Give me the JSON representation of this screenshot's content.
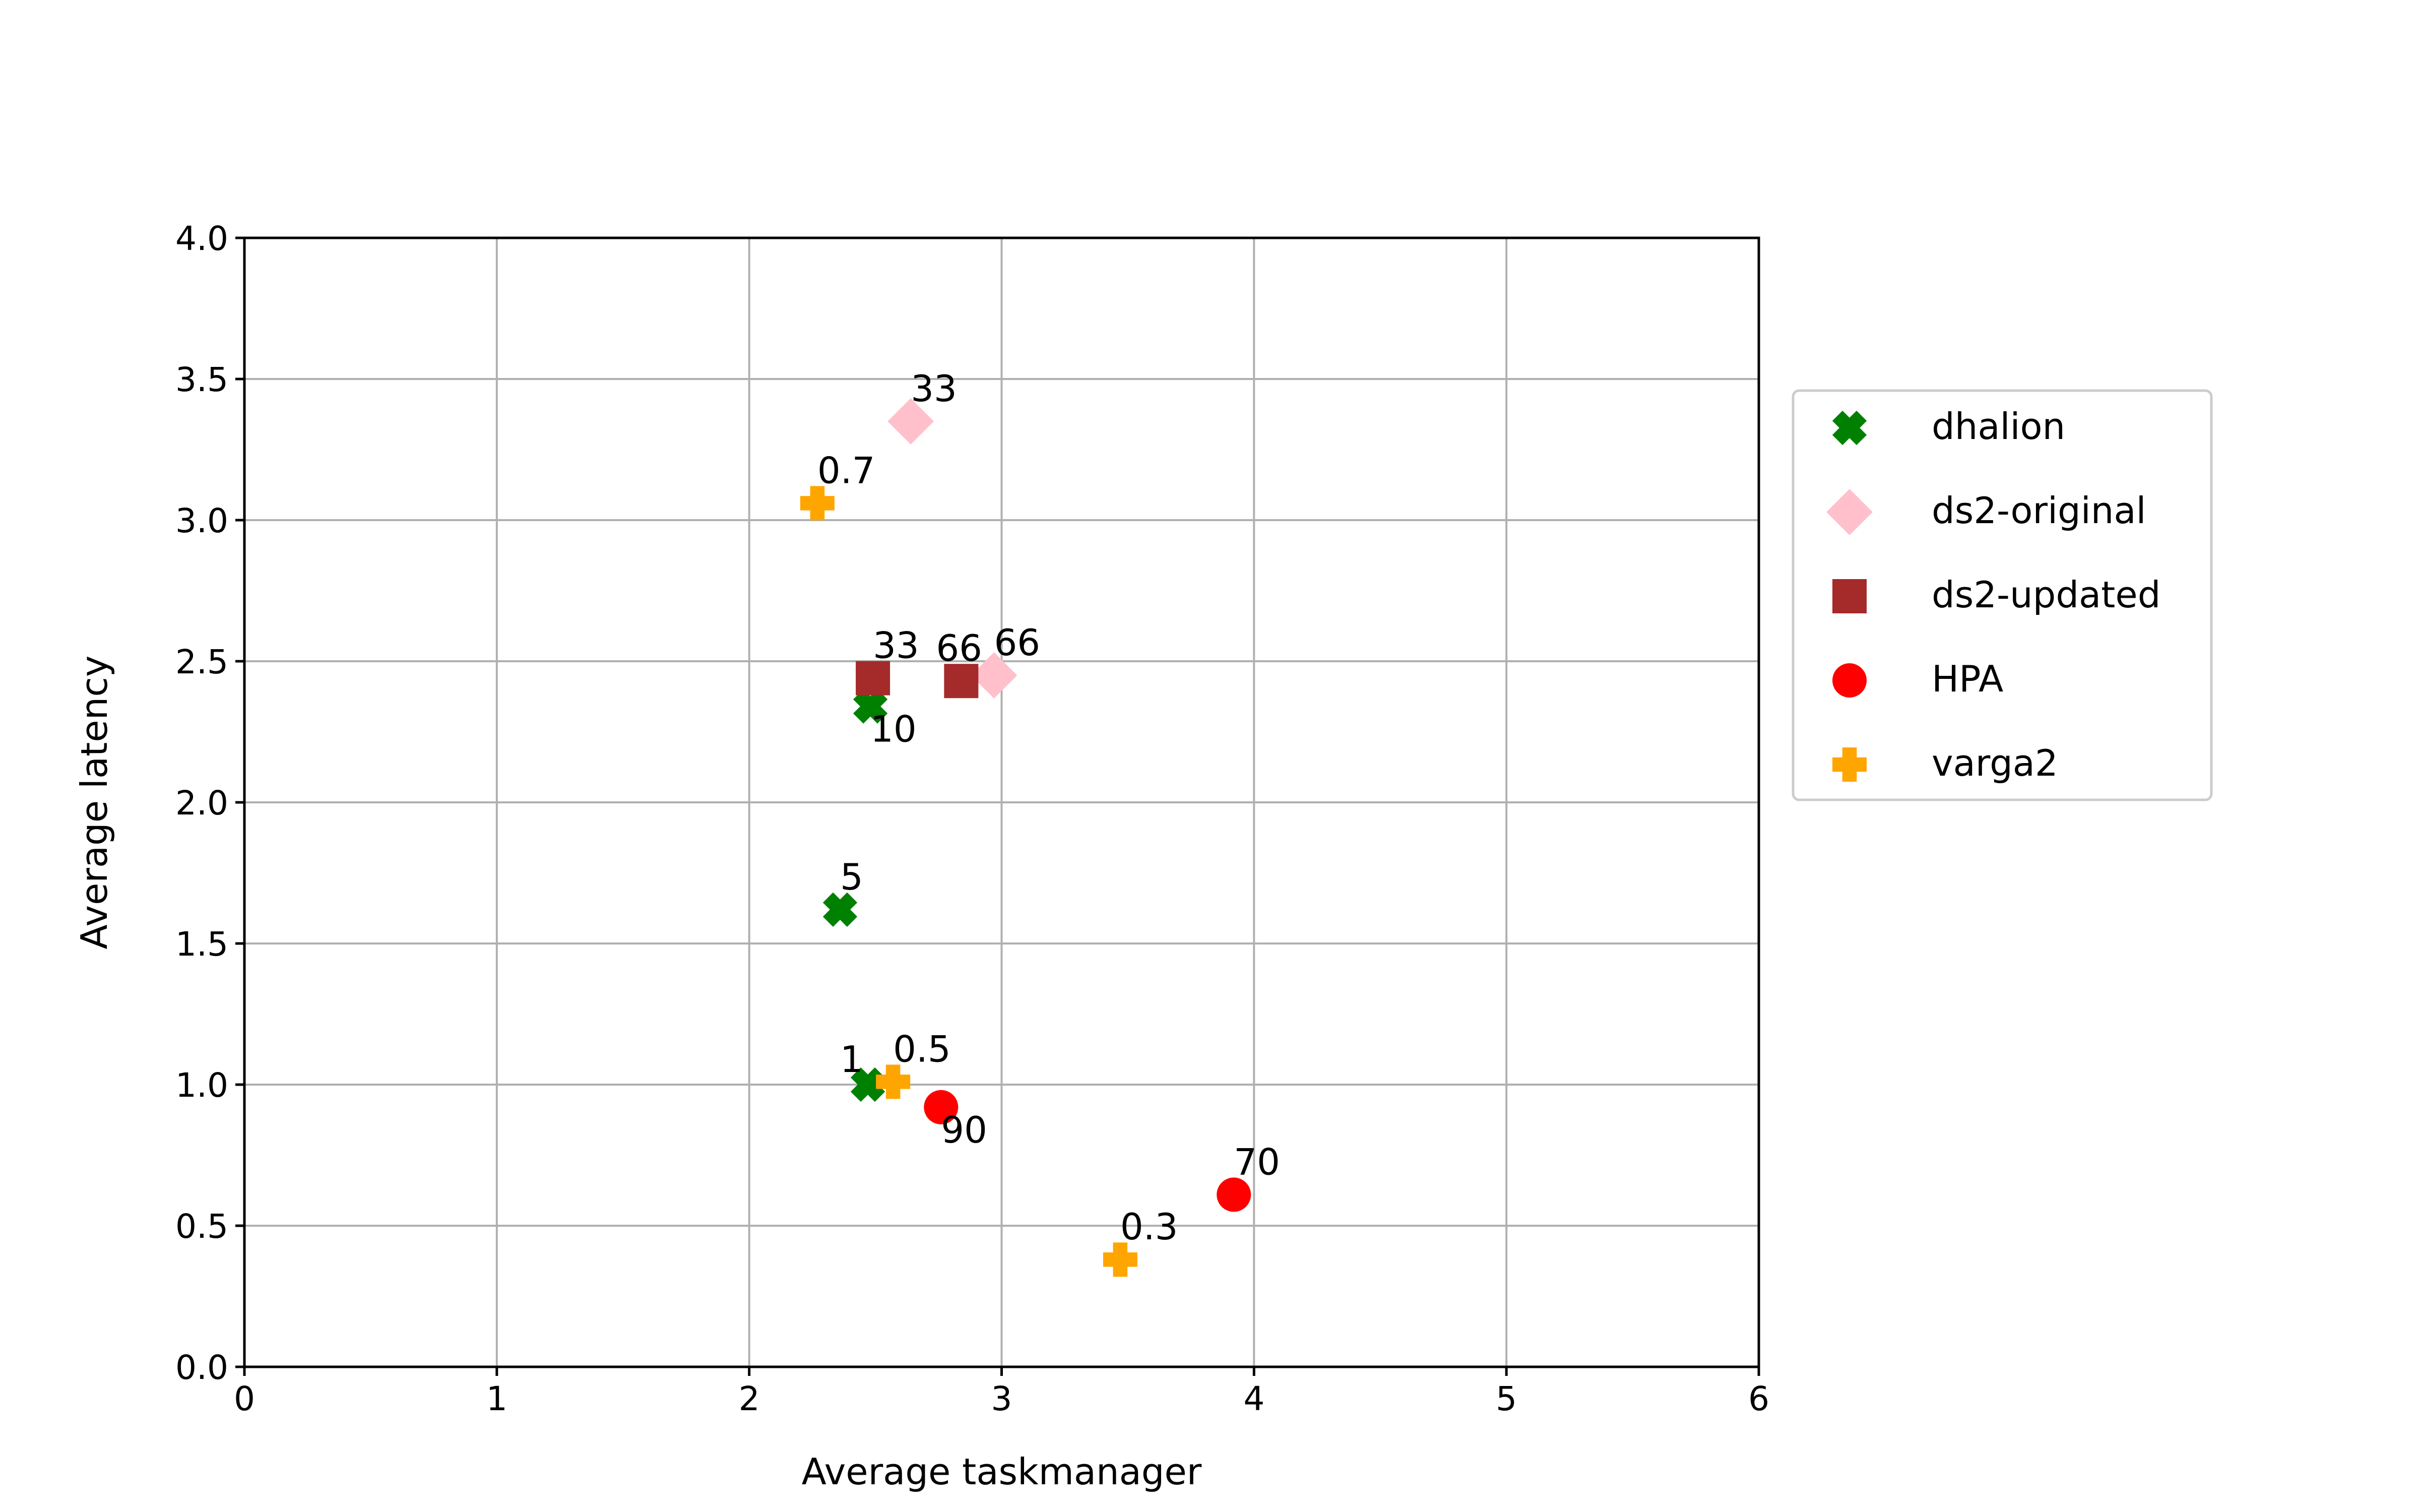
{
  "chart_data": {
    "type": "scatter",
    "title": "",
    "xlabel": "Average taskmanager",
    "ylabel": "Average latency",
    "xlim": [
      0,
      6
    ],
    "ylim": [
      0,
      4
    ],
    "xticks": [
      "0",
      "1",
      "2",
      "3",
      "4",
      "5",
      "6"
    ],
    "yticks": [
      "0.0",
      "0.5",
      "1.0",
      "1.5",
      "2.0",
      "2.5",
      "3.0",
      "3.5",
      "4.0"
    ],
    "grid": true,
    "legend_position": "right, outside plot",
    "series": [
      {
        "name": "dhalion",
        "marker": "x-filled",
        "color": "#008000",
        "points": [
          {
            "x": 2.47,
            "y": 1.0,
            "label": "1"
          },
          {
            "x": 2.36,
            "y": 1.62,
            "label": "5"
          },
          {
            "x": 2.48,
            "y": 2.34,
            "label": "10"
          }
        ]
      },
      {
        "name": "ds2-original",
        "marker": "diamond",
        "color": "#ffc0cb",
        "points": [
          {
            "x": 2.64,
            "y": 3.35,
            "label": "33"
          },
          {
            "x": 2.97,
            "y": 2.45,
            "label": "66"
          }
        ]
      },
      {
        "name": "ds2-updated",
        "marker": "square",
        "color": "#a52a2a",
        "points": [
          {
            "x": 2.49,
            "y": 2.44,
            "label": "33"
          },
          {
            "x": 2.84,
            "y": 2.43,
            "label": "66"
          }
        ]
      },
      {
        "name": "HPA",
        "marker": "circle",
        "color": "#ff0000",
        "points": [
          {
            "x": 2.76,
            "y": 0.92,
            "label": "90"
          },
          {
            "x": 3.92,
            "y": 0.61,
            "label": "70"
          }
        ]
      },
      {
        "name": "varga2",
        "marker": "plus-filled",
        "color": "#ffa500",
        "points": [
          {
            "x": 2.27,
            "y": 3.06,
            "label": "0.7"
          },
          {
            "x": 2.57,
            "y": 1.01,
            "label": "0.5"
          },
          {
            "x": 3.47,
            "y": 0.38,
            "label": "0.3"
          }
        ]
      }
    ]
  }
}
